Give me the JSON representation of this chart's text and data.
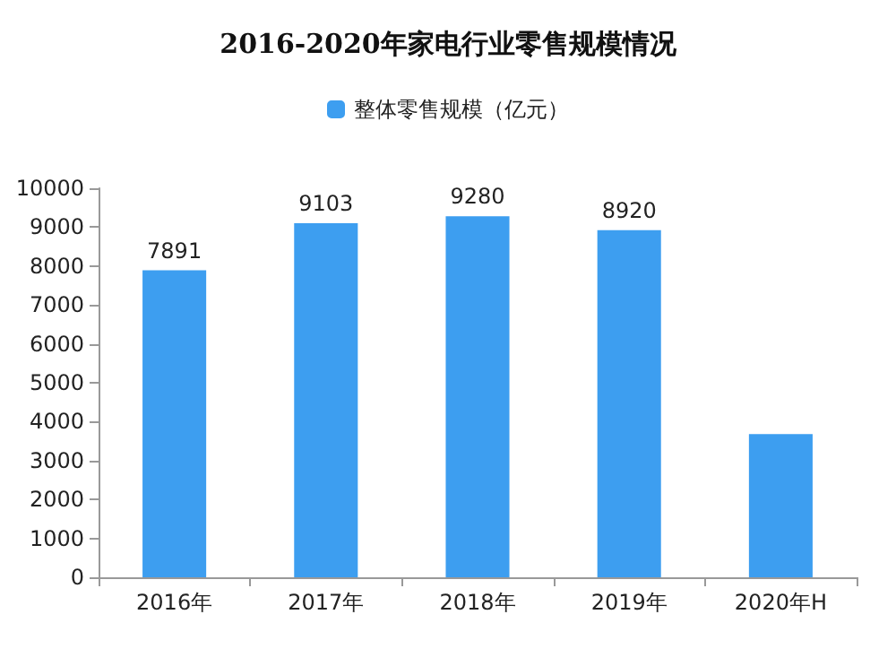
{
  "chart_data": {
    "type": "bar",
    "title": "2016-2020年家电行业零售规模情况",
    "categories": [
      "2016年",
      "2017年",
      "2018年",
      "2019年",
      "2020年H"
    ],
    "series": [
      {
        "name": "整体零售规模（亿元）",
        "color": "#3d9ef0",
        "values": [
          7891,
          9103,
          9280,
          8920,
          3680
        ],
        "value_labels": [
          "7891",
          "9103",
          "9280",
          "8920",
          null
        ]
      }
    ],
    "ylim": [
      0,
      10000
    ],
    "yticks": [
      0,
      1000,
      2000,
      3000,
      4000,
      5000,
      6000,
      7000,
      8000,
      9000,
      10000
    ],
    "grid": false,
    "legend": "top"
  }
}
